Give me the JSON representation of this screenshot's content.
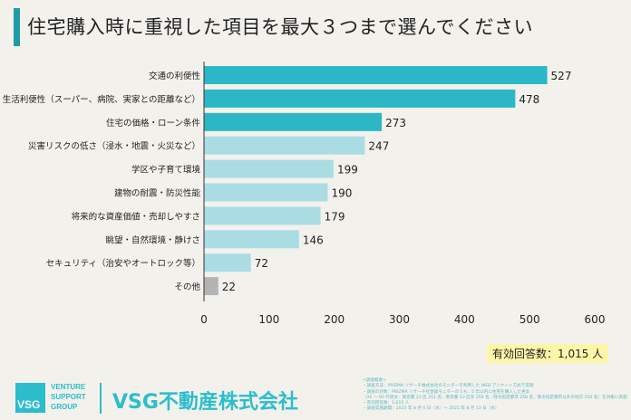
{
  "title": "住宅購入時に重視した項目を最大３つまで選んでください",
  "chart_data": {
    "type": "bar",
    "orientation": "horizontal",
    "categories": [
      "交通の利便性",
      "生活利便性（スーパー、病院、実家との距離など）",
      "住宅の価格・ローン条件",
      "災害リスクの低さ（浸水・地震・火災など）",
      "学区や子育て環境",
      "建物の耐震・防災性能",
      "将来的な資産価値・売却しやすさ",
      "眺望・自然環境・静けさ",
      "セキュリティ（治安やオートロック等）",
      "その他"
    ],
    "values": [
      527,
      478,
      273,
      247,
      199,
      190,
      179,
      146,
      72,
      22
    ],
    "colors": [
      "#2bb7c6",
      "#2bb7c6",
      "#2bb7c6",
      "#aadde3",
      "#aadde3",
      "#aadde3",
      "#aadde3",
      "#aadde3",
      "#aadde3",
      "#b3b3b3"
    ],
    "xlim": [
      0,
      600
    ],
    "xticks": [
      "0",
      "100",
      "200",
      "300",
      "400",
      "500",
      "600"
    ],
    "grid": false,
    "xlabel": "",
    "ylabel": ""
  },
  "respondents": "有効回答数：1,015 人",
  "logo": {
    "mark": "VSG",
    "sub": [
      "VENTURE",
      "SUPPORT",
      "GROUP"
    ]
  },
  "company": "VSG不動産株式会社",
  "notes": [
    "<調査概要>",
    "・調査方法：PRIZMA リサーチ株式会社のモニターを利用した WEB アンケート方式で実施",
    "・調査の対象：PRIZMA リサーチ社登録モニターのうち、5 年以内に住宅を購入した男女",
    "（20 〜 60 代男女：東京都 23 区 251 名／東京都 23 区外 256 名／政令指定都市 258 名／政令指定都市以外の地方 250 名）を対象に実施",
    "・有効回答数：1,015 人",
    "・調査実施期間：2025 年 8 月 6 日（水）〜 2025 年 8 月 13 日（水）"
  ]
}
